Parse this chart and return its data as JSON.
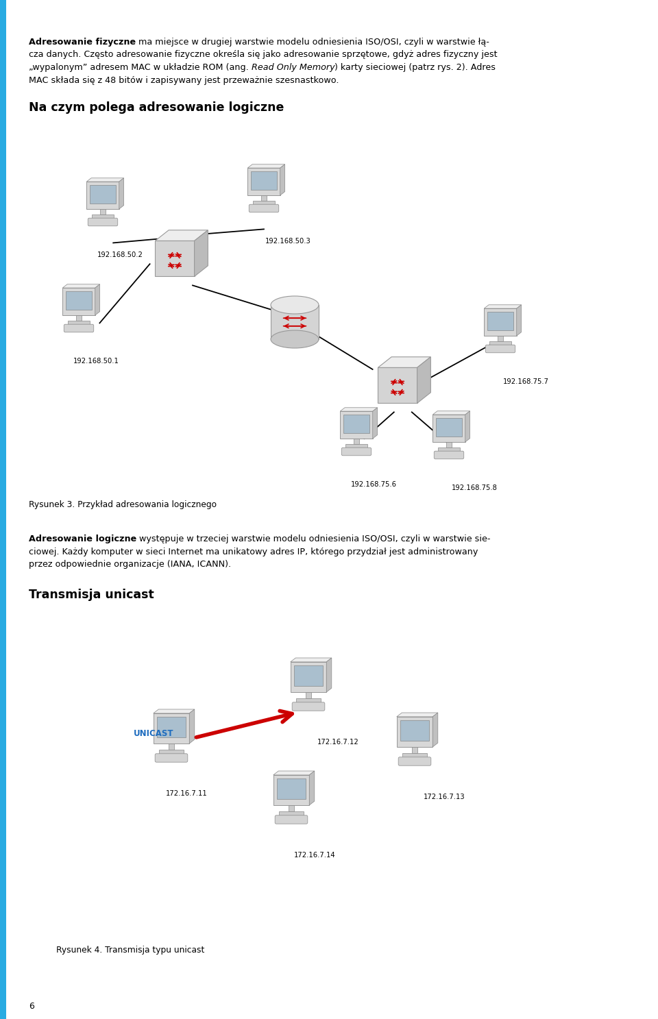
{
  "page_bg": "#ffffff",
  "border_color": "#29abe2",
  "figsize": [
    9.6,
    14.87
  ],
  "dpi": 100,
  "body_fontsize": 9.2,
  "heading_fontsize": 12.5,
  "caption_fontsize": 8.8,
  "label_fontsize": 7.2,
  "unicast_fontsize": 8.5,
  "pagenum_fontsize": 9,
  "text_color": "#000000",
  "label_unicast_color": "#1f6dbf",
  "para1_line1_bold": "Adresowanie fizyczne",
  "para1_line1_rest": " ma miejsce w drugiej warstwie modelu odniesienia ISO/OSI, czyli w warstwie łą-",
  "para1_line2": "cza danych. Często adresowanie fizyczne określa się jako adresowanie sprzętowe, gdyż adres fizyczny jest",
  "para1_line3_pre": "„wypalonym” adresem MAC w układzie ROM (ang. ",
  "para1_line3_italic": "Read Only Memory",
  "para1_line3_post": ") karty sieciowej (patrz rys. 2). Adres",
  "para1_line4": "MAC składa się z 48 bitów i zapisywany jest przeważnie szesnastkowo.",
  "heading1": "Na czym polega adresowanie logiczne",
  "diagram1_caption": "Rysunek 3. Przykład adresowania logicznego",
  "para2_line1_bold": "Adresowanie logiczne",
  "para2_line1_rest": " występuje w trzeciej warstwie modelu odniesienia ISO/OSI, czyli w warstwie sie-",
  "para2_line2": "ciowej. Każdy komputer w sieci Internet ma unikatowy adres IP, którego przydział jest administrowany",
  "para2_line3": "przez odpowiednie organizacje (IANA, ICANN).",
  "heading2": "Transmisja unicast",
  "diagram2_caption": "Rysunek 4. Transmisja typu unicast",
  "page_number": "6",
  "label_unicast": "UNICAST",
  "node_50_1": "192.168.50.1",
  "node_50_2": "192.168.50.2",
  "node_50_3": "192.168.50.3",
  "node_75_6": "192.168.75.6",
  "node_75_7": "192.168.75.7",
  "node_75_8": "192.168.75.8",
  "node_7_11": "172.16.7.11",
  "node_7_12": "172.16.7.12",
  "node_7_13": "172.16.7.13",
  "node_7_14": "172.16.7.14"
}
